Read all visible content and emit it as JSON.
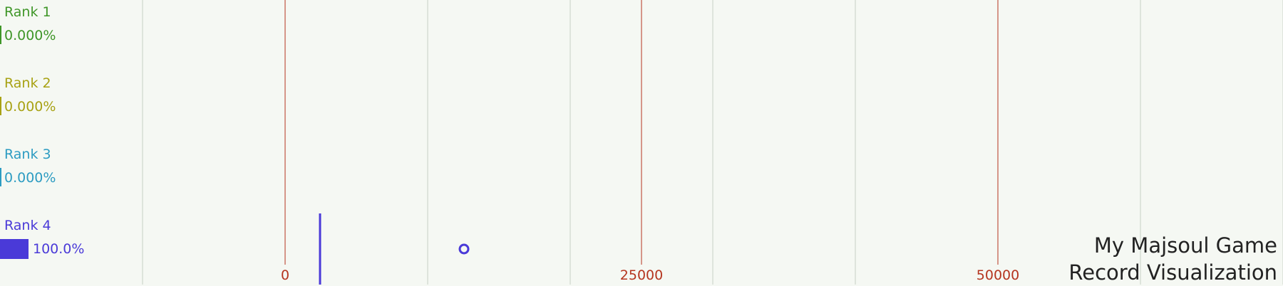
{
  "chart_data": {
    "type": "scatter",
    "title_lines": [
      "My Majsoul Game",
      "Record Visualization"
    ],
    "x_ticks": [
      0,
      25000,
      50000
    ],
    "tick_color": "#b5351f",
    "grid_color": "#c8cfc5",
    "ranks": [
      {
        "name": "Rank 1",
        "percent_label": "0.000%",
        "fraction": 0.0,
        "color": "#3f9628"
      },
      {
        "name": "Rank 2",
        "percent_label": "0.000%",
        "fraction": 0.0,
        "color": "#a8a214"
      },
      {
        "name": "Rank 3",
        "percent_label": "0.000%",
        "fraction": 0.0,
        "color": "#2d9cc2"
      },
      {
        "name": "Rank 4",
        "percent_label": "100.0%",
        "fraction": 1.0,
        "color": "#4a3ad8"
      }
    ],
    "final_score_marker": {
      "x": 2500,
      "rank": 4
    },
    "current_point": {
      "x": 12500,
      "rank": 4
    }
  }
}
